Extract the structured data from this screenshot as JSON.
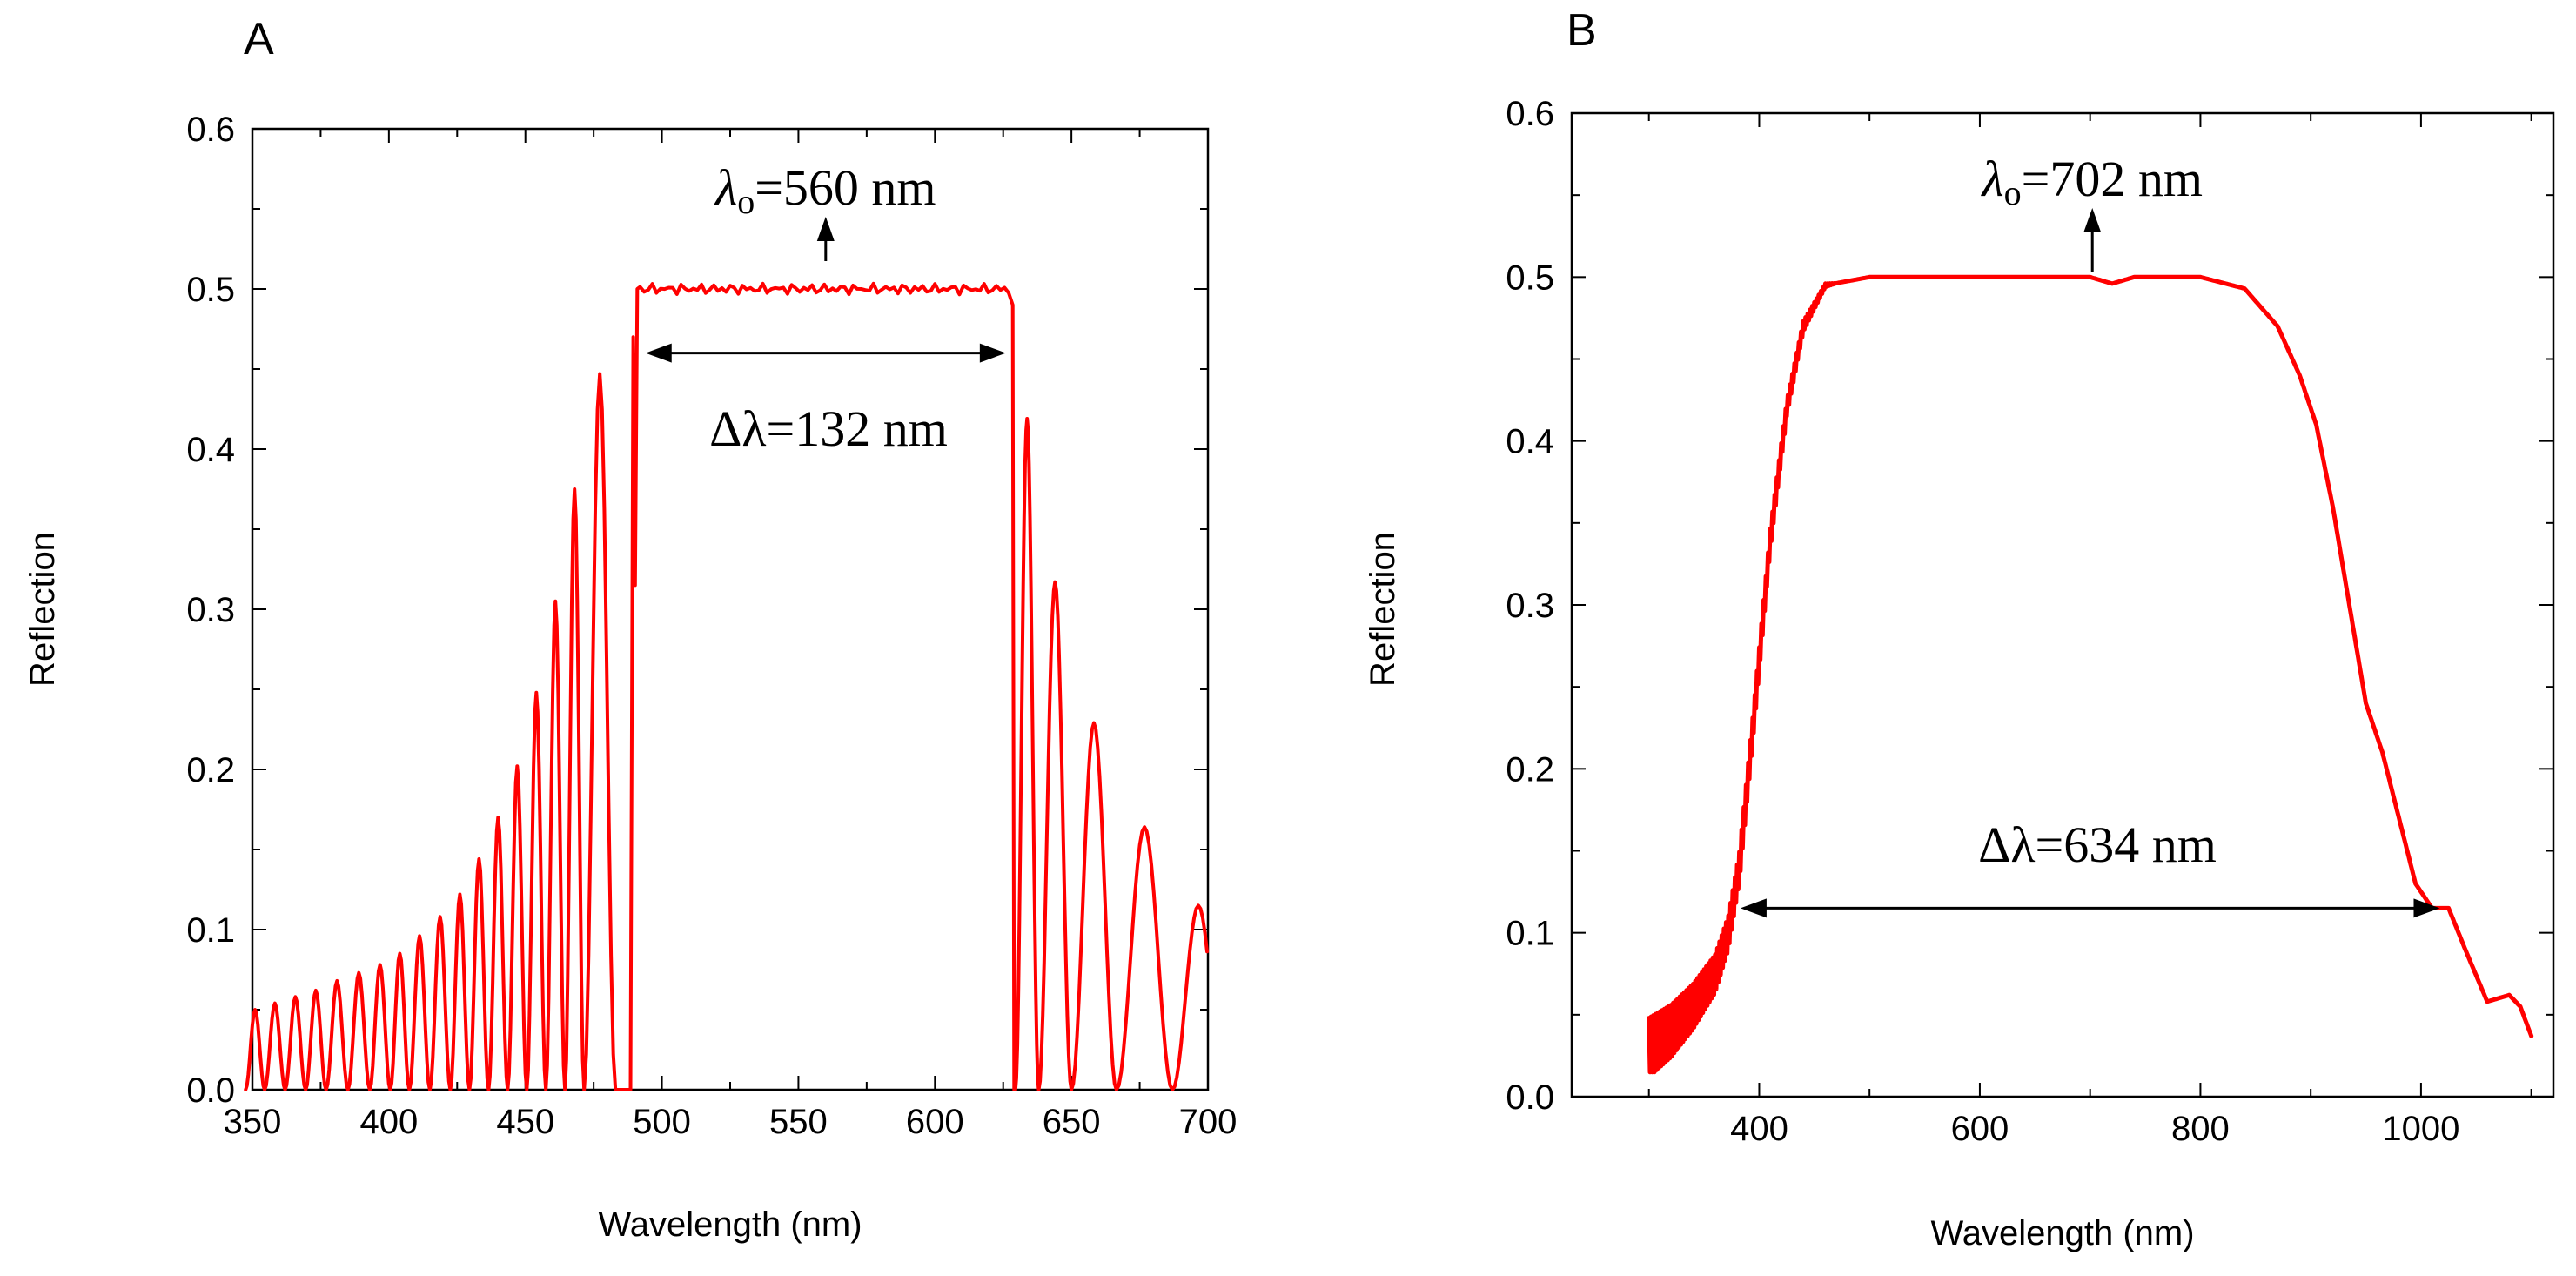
{
  "chart_data": [
    {
      "type": "line",
      "panel_label": "A",
      "xlabel": "Wavelength (nm)",
      "ylabel": "Reflection",
      "xlim": [
        350,
        700
      ],
      "ylim": [
        0,
        0.6
      ],
      "xticks": [
        350,
        400,
        450,
        500,
        550,
        600,
        650,
        700
      ],
      "xtick_labels": [
        "350",
        "400",
        "450",
        "500",
        "550",
        "600",
        "650",
        "700"
      ],
      "yticks": [
        0,
        0.1,
        0.2,
        0.3,
        0.4,
        0.5,
        0.6
      ],
      "ytick_labels": [
        "0.0",
        "0.1",
        "0.2",
        "0.3",
        "0.4",
        "0.5",
        "0.6"
      ],
      "grid": false,
      "series": [
        {
          "name": "Reflection",
          "color": "#ff0000",
          "description": "Bragg reflection band with interference side lobes",
          "band_edges_nm": [
            491,
            629
          ],
          "band_level": 0.5,
          "left_sidelobes": [
            {
              "x": 351,
              "y": 0.05
            },
            {
              "x": 358,
              "y": 0.054
            },
            {
              "x": 366,
              "y": 0.058
            },
            {
              "x": 373,
              "y": 0.062
            },
            {
              "x": 381,
              "y": 0.068
            },
            {
              "x": 389,
              "y": 0.073
            },
            {
              "x": 397,
              "y": 0.078
            },
            {
              "x": 404,
              "y": 0.085
            },
            {
              "x": 411,
              "y": 0.096
            },
            {
              "x": 419,
              "y": 0.108
            },
            {
              "x": 426,
              "y": 0.122
            },
            {
              "x": 433,
              "y": 0.144
            },
            {
              "x": 440,
              "y": 0.17
            },
            {
              "x": 447,
              "y": 0.202
            },
            {
              "x": 454,
              "y": 0.248
            },
            {
              "x": 461,
              "y": 0.305
            },
            {
              "x": 468,
              "y": 0.375
            },
            {
              "x": 475,
              "y": 0.447
            }
          ],
          "right_sidelobes": [
            {
              "x": 633,
              "y": 0.419
            },
            {
              "x": 643,
              "y": 0.317
            },
            {
              "x": 657,
              "y": 0.229
            },
            {
              "x": 676,
              "y": 0.164
            },
            {
              "x": 698,
              "y": 0.115
            }
          ]
        }
      ],
      "annotations": {
        "center_symbol": "λ",
        "center_subscript": "o",
        "center_text": "=560 nm",
        "center_x": 560,
        "width_text": "Δλ=132 nm",
        "width_arrow_x": [
          494,
          626
        ],
        "width_arrow_y": 0.46
      }
    },
    {
      "type": "line",
      "panel_label": "B",
      "xlabel": "Wavelength (nm)",
      "ylabel": "Reflection",
      "xlim": [
        230,
        1120
      ],
      "ylim": [
        0,
        0.6
      ],
      "xticks": [
        400,
        600,
        800,
        1000
      ],
      "xtick_labels": [
        "400",
        "600",
        "800",
        "1000"
      ],
      "yticks": [
        0,
        0.1,
        0.2,
        0.3,
        0.4,
        0.5,
        0.6
      ],
      "ytick_labels": [
        "0.0",
        "0.1",
        "0.2",
        "0.3",
        "0.4",
        "0.5",
        "0.6"
      ],
      "grid": false,
      "series": [
        {
          "name": "Reflection",
          "color": "#ff0000",
          "points": [
            {
              "x": 300,
              "y": 0.03
            },
            {
              "x": 320,
              "y": 0.04
            },
            {
              "x": 340,
              "y": 0.055
            },
            {
              "x": 360,
              "y": 0.075
            },
            {
              "x": 372,
              "y": 0.1
            },
            {
              "x": 382,
              "y": 0.14
            },
            {
              "x": 395,
              "y": 0.23
            },
            {
              "x": 410,
              "y": 0.34
            },
            {
              "x": 425,
              "y": 0.42
            },
            {
              "x": 440,
              "y": 0.47
            },
            {
              "x": 460,
              "y": 0.495
            },
            {
              "x": 500,
              "y": 0.5
            },
            {
              "x": 600,
              "y": 0.5
            },
            {
              "x": 700,
              "y": 0.5
            },
            {
              "x": 720,
              "y": 0.496
            },
            {
              "x": 740,
              "y": 0.5
            },
            {
              "x": 800,
              "y": 0.5
            },
            {
              "x": 840,
              "y": 0.493
            },
            {
              "x": 870,
              "y": 0.47
            },
            {
              "x": 890,
              "y": 0.44
            },
            {
              "x": 905,
              "y": 0.41
            },
            {
              "x": 920,
              "y": 0.36
            },
            {
              "x": 935,
              "y": 0.3
            },
            {
              "x": 950,
              "y": 0.24
            },
            {
              "x": 965,
              "y": 0.21
            },
            {
              "x": 980,
              "y": 0.17
            },
            {
              "x": 995,
              "y": 0.13
            },
            {
              "x": 1010,
              "y": 0.115
            },
            {
              "x": 1025,
              "y": 0.115
            },
            {
              "x": 1040,
              "y": 0.09
            },
            {
              "x": 1060,
              "y": 0.058
            },
            {
              "x": 1080,
              "y": 0.062
            },
            {
              "x": 1090,
              "y": 0.055
            },
            {
              "x": 1100,
              "y": 0.037
            }
          ]
        }
      ],
      "annotations": {
        "center_symbol": "λ",
        "center_subscript": "o",
        "center_text": "=702 nm",
        "center_x": 702,
        "width_text": "Δλ=634 nm",
        "width_arrow_x": [
          383,
          1017
        ],
        "width_arrow_y": 0.115
      }
    }
  ]
}
